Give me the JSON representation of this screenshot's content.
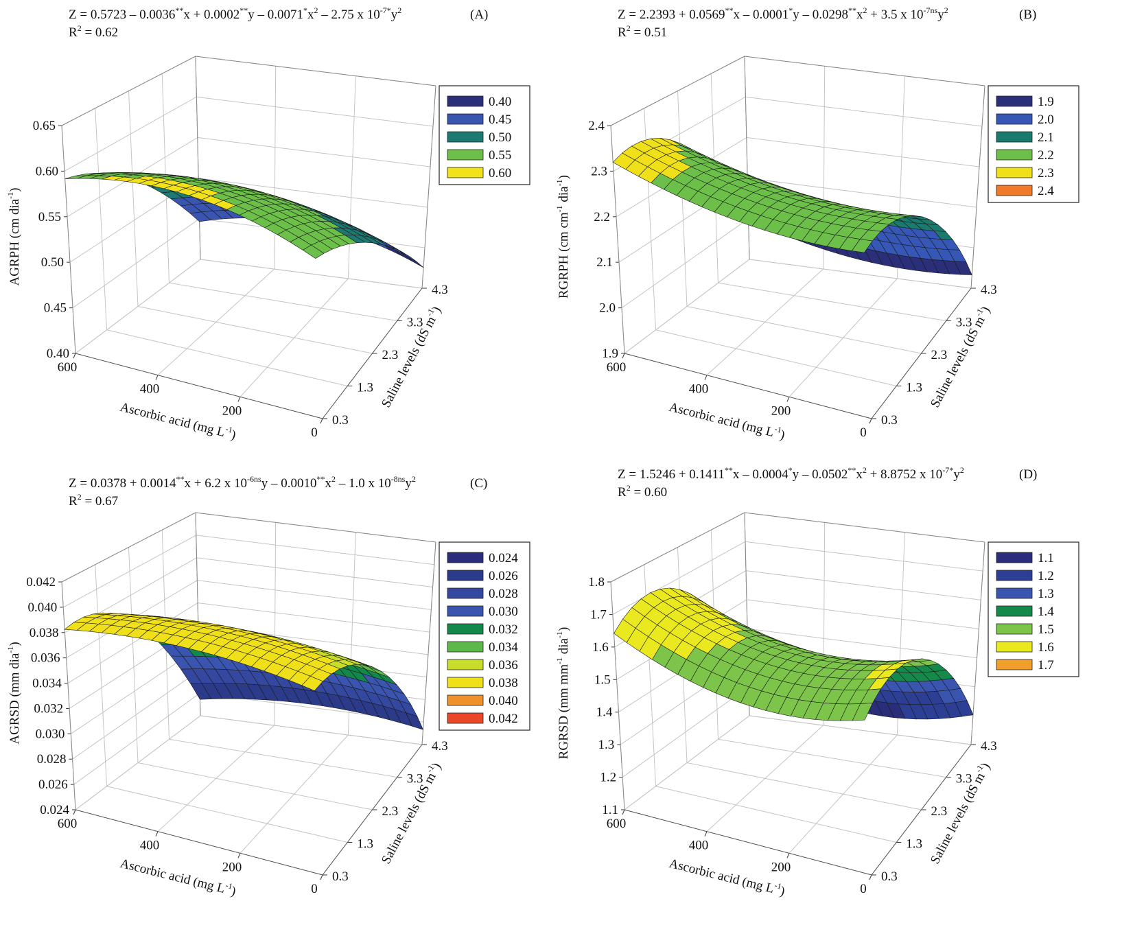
{
  "chart_data": [
    {
      "type": "surface",
      "panel": "(A)",
      "equation": [
        {
          "text": "Z = 0.5723 – 0.0036"
        },
        {
          "text": "**",
          "sup": true
        },
        {
          "text": "x + 0.0002"
        },
        {
          "text": "**",
          "sup": true
        },
        {
          "text": "y – 0.0071"
        },
        {
          "text": "*",
          "sup": true
        },
        {
          "text": "x"
        },
        {
          "text": "2",
          "sup": true
        },
        {
          "text": " – 2.75 x 10"
        },
        {
          "text": "-7*",
          "sup": true
        },
        {
          "text": "y"
        },
        {
          "text": "2",
          "sup": true
        }
      ],
      "r2": [
        {
          "text": "R"
        },
        {
          "text": "2",
          "sup": true
        },
        {
          "text": " = 0.62"
        }
      ],
      "coefficients": [
        0.5723,
        -0.0036,
        0.0002,
        -0.0071,
        -2.75e-07
      ],
      "zlabel": [
        {
          "text": "AGRPH (cm dia"
        },
        {
          "text": "-1",
          "sup": true
        },
        {
          "text": ")"
        }
      ],
      "xlabel": [
        {
          "text": "Ascorbic acid  (mg L"
        },
        {
          "text": "-1",
          "sup": true
        },
        {
          "text": ")"
        }
      ],
      "ylabel": [
        {
          "text": "Saline levels (dS m"
        },
        {
          "text": "-1",
          "sup": true
        },
        {
          "text": ")"
        }
      ],
      "xlim": [
        0,
        600
      ],
      "xticks": [
        0,
        200,
        400,
        600
      ],
      "ylim": [
        0.3,
        4.3
      ],
      "yticks": [
        0.3,
        1.3,
        2.3,
        3.3,
        4.3
      ],
      "zlim": [
        0.4,
        0.65
      ],
      "zticks": [
        {
          "value": 0.4,
          "label": "0.40"
        },
        0.45,
        {
          "value": 0.5,
          "label": "0.50"
        },
        0.55,
        {
          "value": 0.6,
          "label": "0.60"
        },
        0.65
      ],
      "levels": [
        {
          "value": 0.4,
          "label": "0.40"
        },
        0.45,
        {
          "value": 0.5,
          "label": "0.50"
        },
        0.55,
        {
          "value": 0.6,
          "label": "0.60"
        }
      ],
      "colors": [
        "#2b2f7a",
        "#3a55b0",
        "#1d7a73",
        "#6cc04a",
        "#f2e21a"
      ],
      "grid": true
    },
    {
      "type": "surface",
      "panel": "(B)",
      "equation": [
        {
          "text": "Z = 2.2393 + 0.0569"
        },
        {
          "text": "**",
          "sup": true
        },
        {
          "text": "x – 0.0001"
        },
        {
          "text": "*",
          "sup": true
        },
        {
          "text": "y – 0.0298"
        },
        {
          "text": "**",
          "sup": true
        },
        {
          "text": "x"
        },
        {
          "text": "2",
          "sup": true
        },
        {
          "text": " + 3.5 x 10"
        },
        {
          "text": "-7ns",
          "sup": true
        },
        {
          "text": "y"
        },
        {
          "text": "2",
          "sup": true
        }
      ],
      "r2": [
        {
          "text": "R"
        },
        {
          "text": "2",
          "sup": true
        },
        {
          "text": " = 0.51"
        }
      ],
      "coefficients": [
        2.2393,
        0.0569,
        -0.0001,
        -0.0298,
        3.5e-07
      ],
      "zlabel": [
        {
          "text": "RGRPH (cm cm"
        },
        {
          "text": "-1",
          "sup": true
        },
        {
          "text": " dia"
        },
        {
          "text": "-1",
          "sup": true
        },
        {
          "text": ")"
        }
      ],
      "xlabel": [
        {
          "text": "Ascorbic acid (mg L"
        },
        {
          "text": "-1",
          "sup": true
        },
        {
          "text": ")"
        }
      ],
      "ylabel": [
        {
          "text": "Saline levels (dS m"
        },
        {
          "text": "-1",
          "sup": true
        },
        {
          "text": ")"
        }
      ],
      "xlim": [
        0,
        600
      ],
      "xticks": [
        0,
        200,
        400,
        600
      ],
      "ylim": [
        0.3,
        4.3
      ],
      "yticks": [
        0.3,
        1.3,
        2.3,
        3.3,
        4.3
      ],
      "zlim": [
        1.9,
        2.4
      ],
      "zticks": [
        1.9,
        {
          "value": 2.0,
          "label": "2.0"
        },
        2.1,
        2.2,
        2.3,
        2.4
      ],
      "levels": [
        1.9,
        {
          "value": 2.0,
          "label": "2.0"
        },
        2.1,
        2.2,
        2.3,
        2.4
      ],
      "colors": [
        "#2b2f7a",
        "#3657b5",
        "#1a7a6e",
        "#6cc04a",
        "#f0e01a",
        "#f07a2a"
      ],
      "grid": true
    },
    {
      "type": "surface",
      "panel": "(C)",
      "equation": [
        {
          "text": "Z =  0.0378 + 0.0014"
        },
        {
          "text": "**",
          "sup": true
        },
        {
          "text": "x + 6.2 x 10"
        },
        {
          "text": "-6ns",
          "sup": true
        },
        {
          "text": "y – 0.0010"
        },
        {
          "text": "**",
          "sup": true
        },
        {
          "text": "x"
        },
        {
          "text": "2",
          "sup": true
        },
        {
          "text": " – 1.0 x 10"
        },
        {
          "text": "-8ns",
          "sup": true
        },
        {
          "text": "y"
        },
        {
          "text": "2",
          "sup": true
        }
      ],
      "r2": [
        {
          "text": "R"
        },
        {
          "text": "2",
          "sup": true
        },
        {
          "text": " = 0.67"
        }
      ],
      "coefficients": [
        0.0378,
        0.0014,
        6.2e-06,
        -0.001,
        -1e-08
      ],
      "zlabel": [
        {
          "text": "AGRSD (mm dia"
        },
        {
          "text": "-1",
          "sup": true
        },
        {
          "text": ")"
        }
      ],
      "xlabel": [
        {
          "text": "Ascorbic acid (mg L"
        },
        {
          "text": "-1",
          "sup": true
        },
        {
          "text": ")"
        }
      ],
      "ylabel": [
        {
          "text": "Saline levels (dS m"
        },
        {
          "text": "-1",
          "sup": true
        },
        {
          "text": ")"
        }
      ],
      "xlim": [
        0,
        600
      ],
      "xticks": [
        0,
        200,
        400,
        600
      ],
      "ylim": [
        0.3,
        4.3
      ],
      "yticks": [
        0.3,
        1.3,
        2.3,
        3.3,
        4.3
      ],
      "zlim": [
        0.024,
        0.042
      ],
      "zticks": [
        0.024,
        0.026,
        0.028,
        {
          "value": 0.03,
          "label": "0.030"
        },
        0.032,
        0.034,
        0.036,
        0.038,
        {
          "value": 0.04,
          "label": "0.040"
        },
        0.042
      ],
      "levels": [
        0.024,
        0.026,
        0.028,
        {
          "value": 0.03,
          "label": "0.030"
        },
        0.032,
        0.034,
        0.036,
        0.038,
        {
          "value": 0.04,
          "label": "0.040"
        },
        0.042
      ],
      "colors": [
        "#2a2e7a",
        "#2c3a8a",
        "#34489f",
        "#3a55b0",
        "#12884a",
        "#5cb848",
        "#c8dc2a",
        "#f0e01a",
        "#f0902a",
        "#e8472a"
      ],
      "grid": true
    },
    {
      "type": "surface",
      "panel": "(D)",
      "equation": [
        {
          "text": "Z = 1.5246 + 0.1411"
        },
        {
          "text": "**",
          "sup": true
        },
        {
          "text": "x – 0.0004"
        },
        {
          "text": "*",
          "sup": true
        },
        {
          "text": "y – 0.0502"
        },
        {
          "text": "**",
          "sup": true
        },
        {
          "text": "x"
        },
        {
          "text": "2",
          "sup": true
        },
        {
          "text": " + 8.8752 x 10"
        },
        {
          "text": "-7*",
          "sup": true
        },
        {
          "text": "y"
        },
        {
          "text": "2",
          "sup": true
        }
      ],
      "r2": [
        {
          "text": "R"
        },
        {
          "text": "2",
          "sup": true
        },
        {
          "text": " = 0.60"
        }
      ],
      "coefficients": [
        1.5246,
        0.1411,
        -0.0004,
        -0.0502,
        8.8752e-07
      ],
      "zlabel": [
        {
          "text": "RGRSD (mm mm"
        },
        {
          "text": "-1",
          "sup": true
        },
        {
          "text": " dia"
        },
        {
          "text": "-1",
          "sup": true
        },
        {
          "text": ")"
        }
      ],
      "xlabel": [
        {
          "text": "Ascorbic acid (mg L"
        },
        {
          "text": "-1",
          "sup": true
        },
        {
          "text": ")"
        }
      ],
      "ylabel": [
        {
          "text": "Saline levels (dS m"
        },
        {
          "text": "-1",
          "sup": true
        },
        {
          "text": ")"
        }
      ],
      "xlim": [
        0,
        600
      ],
      "xticks": [
        0,
        200,
        400,
        600
      ],
      "ylim": [
        0.3,
        4.3
      ],
      "yticks": [
        0.3,
        1.3,
        2.3,
        3.3,
        4.3
      ],
      "zlim": [
        1.1,
        1.8
      ],
      "zticks": [
        1.1,
        1.2,
        1.3,
        1.4,
        1.5,
        1.6,
        1.7,
        1.8
      ],
      "levels": [
        1.1,
        1.2,
        1.3,
        1.4,
        1.5,
        1.6,
        1.7
      ],
      "colors": [
        "#2a2e7a",
        "#2c3f95",
        "#3a55b0",
        "#138a4a",
        "#7cc44a",
        "#eae81e",
        "#f0a02a"
      ],
      "grid": true
    }
  ]
}
